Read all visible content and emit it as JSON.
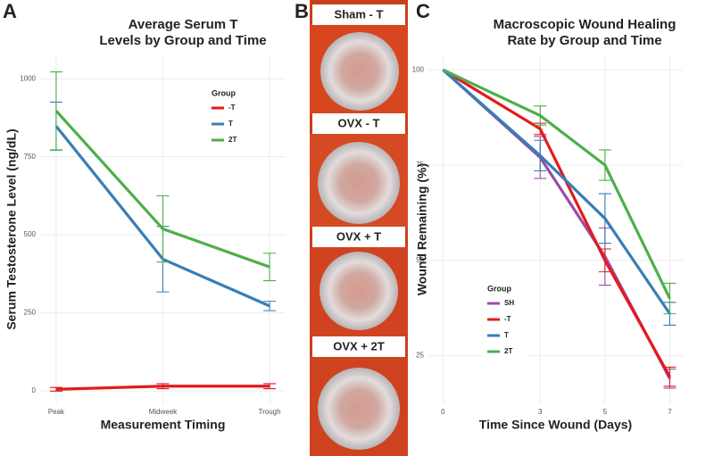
{
  "chart_data": [
    {
      "type": "line",
      "panel_label": "A",
      "title": [
        "Average Serum T",
        "Levels by Group and Time"
      ],
      "x_label": "Measurement Timing",
      "y_label": "Serum Testosterone Level (ng/dL)",
      "categories": [
        "Peak",
        "Midweek",
        "Trough"
      ],
      "ylim": [
        -40,
        1075
      ],
      "yticks": [
        0,
        250,
        500,
        750,
        1000
      ],
      "grid": true,
      "legend_title": "Group",
      "legend_position": "top-right",
      "series": [
        {
          "name": "-T",
          "color": "#e41a1c",
          "values": [
            5,
            15,
            15
          ],
          "errors": [
            6,
            8,
            8
          ]
        },
        {
          "name": "T",
          "color": "#377eb8",
          "values": [
            848,
            422,
            272
          ],
          "errors": [
            77,
            105,
            15
          ]
        },
        {
          "name": "2T",
          "color": "#4daf4a",
          "values": [
            897,
            519,
            397
          ],
          "errors": [
            125,
            106,
            44
          ]
        }
      ]
    },
    {
      "type": "line",
      "panel_label": "C",
      "title": [
        "Macroscopic Wound Healing",
        "Rate by Group and Time"
      ],
      "x_label": "Time Since Wound (Days)",
      "y_label": "Wound Remaining (%)",
      "x": [
        0,
        3,
        5,
        7
      ],
      "xlim": [
        -0.45,
        7.4
      ],
      "xticks": [
        0,
        3,
        5,
        7
      ],
      "ylim": [
        12.5,
        103.8
      ],
      "yticks": [
        25,
        50,
        75,
        100
      ],
      "grid": true,
      "legend_title": "Group",
      "legend_position": "bottom-left",
      "series": [
        {
          "name": "SH",
          "color": "#984ea3",
          "values": [
            100,
            77,
            51,
            19
          ],
          "errors": [
            0,
            5.5,
            7.5,
            2.5
          ]
        },
        {
          "name": "-T",
          "color": "#e41a1c",
          "values": [
            100,
            84.5,
            50,
            19.5
          ],
          "errors": [
            0,
            1.5,
            3,
            2.5
          ]
        },
        {
          "name": "T",
          "color": "#377eb8",
          "values": [
            100,
            77.5,
            61,
            36
          ],
          "errors": [
            0,
            4,
            6.5,
            3
          ]
        },
        {
          "name": "2T",
          "color": "#4daf4a",
          "values": [
            100,
            88,
            75,
            40
          ],
          "errors": [
            0,
            2.5,
            4,
            4
          ]
        }
      ]
    }
  ],
  "photo_panel": {
    "label": "B",
    "captions": [
      "Sham - T",
      "OVX - T",
      "OVX + T",
      "OVX + 2T"
    ]
  }
}
